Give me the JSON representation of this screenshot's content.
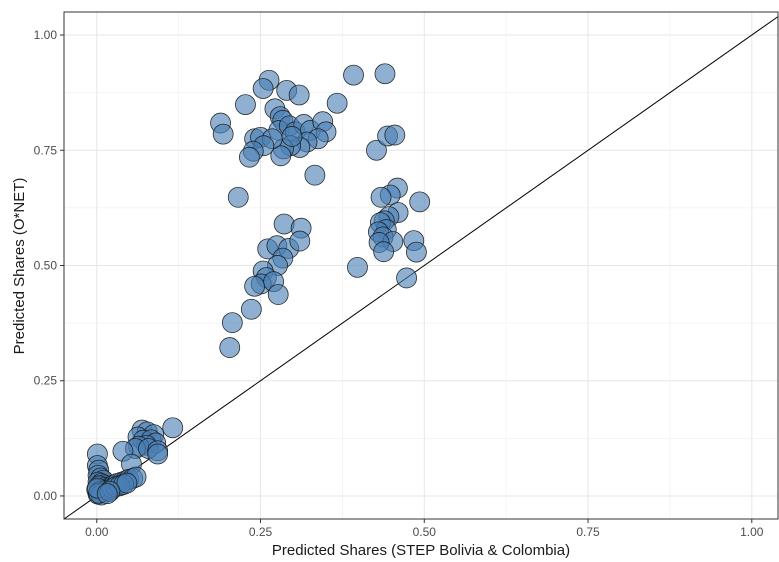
{
  "chart_data": {
    "type": "scatter",
    "title": "",
    "xlabel": "Predicted Shares (STEP Bolivia & Colombia)",
    "ylabel": "Predicted Shares (O*NET)",
    "xlim": [
      -0.05,
      1.04
    ],
    "ylim": [
      -0.05,
      1.05
    ],
    "xticks": [
      0.0,
      0.25,
      0.5,
      0.75,
      1.0
    ],
    "yticks": [
      0.0,
      0.25,
      0.5,
      0.75,
      1.0
    ],
    "xtick_labels": [
      "0.00",
      "0.25",
      "0.50",
      "0.75",
      "1.00"
    ],
    "ytick_labels": [
      "0.00",
      "0.25",
      "0.50",
      "0.75",
      "1.00"
    ],
    "grid": true,
    "reference_line": {
      "type": "identity",
      "slope": 1,
      "intercept": 0
    },
    "marker_color": "#4a80b5",
    "marker_edge_color": "#1a1a1a",
    "points": [
      [
        0.189,
        0.809
      ],
      [
        0.193,
        0.785
      ],
      [
        0.227,
        0.849
      ],
      [
        0.263,
        0.902
      ],
      [
        0.254,
        0.884
      ],
      [
        0.29,
        0.88
      ],
      [
        0.309,
        0.87
      ],
      [
        0.392,
        0.913
      ],
      [
        0.44,
        0.916
      ],
      [
        0.367,
        0.852
      ],
      [
        0.272,
        0.84
      ],
      [
        0.28,
        0.823
      ],
      [
        0.284,
        0.815
      ],
      [
        0.241,
        0.775
      ],
      [
        0.25,
        0.778
      ],
      [
        0.278,
        0.793
      ],
      [
        0.294,
        0.803
      ],
      [
        0.303,
        0.79
      ],
      [
        0.316,
        0.806
      ],
      [
        0.326,
        0.793
      ],
      [
        0.345,
        0.812
      ],
      [
        0.35,
        0.79
      ],
      [
        0.338,
        0.775
      ],
      [
        0.321,
        0.768
      ],
      [
        0.31,
        0.756
      ],
      [
        0.296,
        0.76
      ],
      [
        0.285,
        0.753
      ],
      [
        0.281,
        0.738
      ],
      [
        0.268,
        0.775
      ],
      [
        0.255,
        0.76
      ],
      [
        0.239,
        0.748
      ],
      [
        0.233,
        0.735
      ],
      [
        0.298,
        0.78
      ],
      [
        0.333,
        0.696
      ],
      [
        0.427,
        0.75
      ],
      [
        0.444,
        0.781
      ],
      [
        0.455,
        0.783
      ],
      [
        0.216,
        0.648
      ],
      [
        0.459,
        0.668
      ],
      [
        0.448,
        0.653
      ],
      [
        0.434,
        0.648
      ],
      [
        0.493,
        0.638
      ],
      [
        0.286,
        0.59
      ],
      [
        0.312,
        0.581
      ],
      [
        0.261,
        0.536
      ],
      [
        0.275,
        0.543
      ],
      [
        0.293,
        0.537
      ],
      [
        0.31,
        0.553
      ],
      [
        0.284,
        0.516
      ],
      [
        0.276,
        0.5
      ],
      [
        0.254,
        0.488
      ],
      [
        0.259,
        0.474
      ],
      [
        0.251,
        0.46
      ],
      [
        0.241,
        0.455
      ],
      [
        0.27,
        0.465
      ],
      [
        0.277,
        0.437
      ],
      [
        0.236,
        0.405
      ],
      [
        0.207,
        0.376
      ],
      [
        0.203,
        0.322
      ],
      [
        0.398,
        0.496
      ],
      [
        0.473,
        0.473
      ],
      [
        0.46,
        0.615
      ],
      [
        0.446,
        0.606
      ],
      [
        0.439,
        0.597
      ],
      [
        0.433,
        0.593
      ],
      [
        0.442,
        0.578
      ],
      [
        0.43,
        0.573
      ],
      [
        0.437,
        0.562
      ],
      [
        0.452,
        0.552
      ],
      [
        0.431,
        0.55
      ],
      [
        0.484,
        0.554
      ],
      [
        0.488,
        0.529
      ],
      [
        0.438,
        0.53
      ],
      [
        0.069,
        0.143
      ],
      [
        0.077,
        0.139
      ],
      [
        0.087,
        0.133
      ],
      [
        0.063,
        0.128
      ],
      [
        0.071,
        0.121
      ],
      [
        0.083,
        0.122
      ],
      [
        0.09,
        0.115
      ],
      [
        0.076,
        0.11
      ],
      [
        0.064,
        0.108
      ],
      [
        0.059,
        0.103
      ],
      [
        0.079,
        0.103
      ],
      [
        0.093,
        0.098
      ],
      [
        0.116,
        0.148
      ],
      [
        0.04,
        0.097
      ],
      [
        0.093,
        0.091
      ],
      [
        0.053,
        0.069
      ],
      [
        0.001,
        0.091
      ],
      [
        0.001,
        0.066
      ],
      [
        0.003,
        0.056
      ],
      [
        0.002,
        0.045
      ],
      [
        0.006,
        0.039
      ],
      [
        0.01,
        0.034
      ],
      [
        0.002,
        0.03
      ],
      [
        0.007,
        0.027
      ],
      [
        0.011,
        0.024
      ],
      [
        0.004,
        0.022
      ],
      [
        0.013,
        0.019
      ],
      [
        0.017,
        0.016
      ],
      [
        0.022,
        0.021
      ],
      [
        0.026,
        0.024
      ],
      [
        0.031,
        0.027
      ],
      [
        0.038,
        0.03
      ],
      [
        0.044,
        0.033
      ],
      [
        0.049,
        0.036
      ],
      [
        0.055,
        0.038
      ],
      [
        0.06,
        0.041
      ],
      [
        0.0,
        0.014
      ],
      [
        0.005,
        0.01
      ],
      [
        0.009,
        0.008
      ],
      [
        0.014,
        0.012
      ],
      [
        0.019,
        0.013
      ],
      [
        0.002,
        0.004
      ],
      [
        0.007,
        0.002
      ],
      [
        0.003,
        0.006
      ],
      [
        0.001,
        0.017
      ],
      [
        0.024,
        0.017
      ],
      [
        0.029,
        0.02
      ],
      [
        0.035,
        0.022
      ],
      [
        0.041,
        0.025
      ],
      [
        0.046,
        0.028
      ],
      [
        0.02,
        0.01
      ],
      [
        0.016,
        0.005
      ]
    ]
  }
}
